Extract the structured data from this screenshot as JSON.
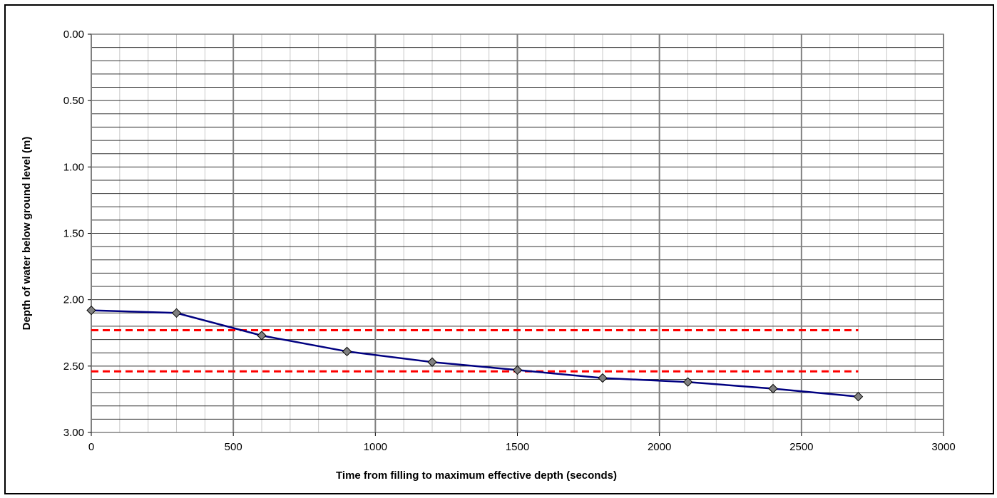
{
  "chart_data": {
    "type": "line",
    "title": "",
    "xlabel": "Time from filling to maximum effective depth (seconds)",
    "ylabel": "Depth of water below ground level (m)",
    "xlim": [
      0,
      3000
    ],
    "ylim": [
      0,
      3
    ],
    "y_inverted": true,
    "x_ticks": [
      0,
      500,
      1000,
      1500,
      2000,
      2500,
      3000
    ],
    "x_tick_labels": [
      "0",
      "500",
      "1000",
      "1500",
      "2000",
      "2500",
      "3000"
    ],
    "y_ticks": [
      0,
      0.5,
      1,
      1.5,
      2,
      2.5,
      3
    ],
    "y_tick_labels": [
      "0.00",
      "0.50",
      "1.00",
      "1.50",
      "2.00",
      "2.50",
      "3.00"
    ],
    "x_minor_step": 100,
    "y_minor_step": 0.1,
    "grid": true,
    "legend": "none",
    "series": [
      {
        "x": [
          0,
          300,
          600,
          900,
          1200,
          1500,
          1800,
          2100,
          2400,
          2700
        ],
        "y": [
          2.08,
          2.1,
          2.27,
          2.39,
          2.47,
          2.53,
          2.59,
          2.62,
          2.67,
          2.73
        ],
        "color": "#000080",
        "marker": "diamond",
        "marker_color": "#808080"
      }
    ],
    "reference_lines": [
      {
        "y": 2.23,
        "x_range": [
          0,
          2700
        ],
        "color": "#ff0000",
        "style": "dashed"
      },
      {
        "y": 2.54,
        "x_range": [
          0,
          2700
        ],
        "color": "#ff0000",
        "style": "dashed"
      }
    ]
  }
}
